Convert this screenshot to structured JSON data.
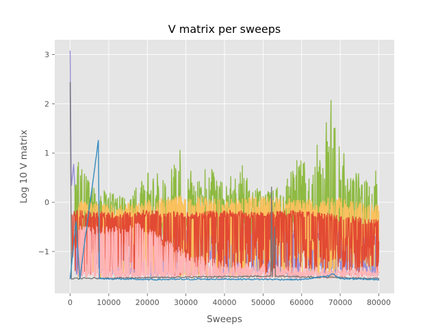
{
  "chart_data": {
    "type": "line",
    "title": "V matrix per sweeps",
    "xlabel": "Sweeps",
    "ylabel": "Log 10 V matrix",
    "xlim": [
      -4000,
      84000
    ],
    "ylim": [
      -1.85,
      3.3
    ],
    "xticks": [
      0,
      10000,
      20000,
      30000,
      40000,
      50000,
      60000,
      70000,
      80000
    ],
    "yticks": [
      -1,
      0,
      1,
      2,
      3
    ],
    "grid": true,
    "style": "ggplot",
    "background": "#E5E5E5",
    "series": [
      {
        "color": "#988ED5",
        "points": [
          [
            0,
            3.08
          ],
          [
            300,
            0.3
          ],
          [
            900,
            0.78
          ],
          [
            1500,
            -0.2
          ],
          [
            3000,
            -0.5
          ],
          [
            6000,
            -0.4
          ],
          [
            10000,
            -0.45
          ],
          [
            20000,
            -0.35
          ],
          [
            30000,
            -0.4
          ],
          [
            40000,
            -0.35
          ],
          [
            50000,
            -0.4
          ],
          [
            60000,
            -0.45
          ],
          [
            70000,
            -0.4
          ],
          [
            80000,
            -0.55
          ]
        ],
        "floor": [
          -1.3,
          -0.5
        ]
      },
      {
        "color": "#8EBA42",
        "points": [
          [
            1000,
            0.2
          ],
          [
            2200,
            0.87
          ],
          [
            5000,
            0.4
          ],
          [
            10000,
            0.2
          ],
          [
            15000,
            0.1
          ],
          [
            21000,
            0.7
          ],
          [
            25000,
            0.45
          ],
          [
            29500,
            1.26
          ],
          [
            32000,
            0.4
          ],
          [
            36000,
            0.8
          ],
          [
            40000,
            0.4
          ],
          [
            44500,
            0.8
          ],
          [
            48000,
            0.3
          ],
          [
            55000,
            0.3
          ],
          [
            59000,
            0.95
          ],
          [
            61000,
            0.8
          ],
          [
            63000,
            0.6
          ],
          [
            64000,
            1.2
          ],
          [
            66000,
            1.45
          ],
          [
            67500,
            2.19
          ],
          [
            68500,
            1.8
          ],
          [
            70000,
            1.3
          ],
          [
            72000,
            0.7
          ],
          [
            76000,
            0.55
          ],
          [
            79000,
            0.95
          ],
          [
            80000,
            0.4
          ]
        ],
        "base": -0.3
      },
      {
        "color": "#FBC15E",
        "points": [
          [
            2000,
            -0.2
          ],
          [
            10000,
            -0.3
          ],
          [
            20000,
            -0.2
          ],
          [
            30000,
            -0.1
          ],
          [
            40000,
            -0.2
          ],
          [
            50000,
            -0.1
          ],
          [
            60000,
            -0.2
          ],
          [
            70000,
            -0.15
          ],
          [
            80000,
            -0.3
          ]
        ]
      },
      {
        "color": "#E24A33",
        "points": [
          [
            500,
            -0.3
          ],
          [
            10000,
            -0.35
          ],
          [
            20000,
            -0.3
          ],
          [
            30000,
            -0.35
          ],
          [
            40000,
            -0.3
          ],
          [
            50000,
            -0.35
          ],
          [
            60000,
            -0.3
          ],
          [
            70000,
            -0.4
          ],
          [
            80000,
            -0.5
          ]
        ]
      },
      {
        "color": "#FFB5B8",
        "points": [
          [
            2000,
            -0.6
          ],
          [
            5000,
            -0.7
          ],
          [
            10000,
            -0.7
          ],
          [
            18000,
            -0.6
          ],
          [
            22000,
            -0.8
          ],
          [
            30000,
            -1.2
          ],
          [
            40000,
            -1.4
          ],
          [
            50000,
            -1.45
          ],
          [
            60000,
            -1.5
          ],
          [
            70000,
            -1.5
          ],
          [
            80000,
            -1.5
          ]
        ]
      },
      {
        "color": "#777777",
        "points": [
          [
            0,
            2.42
          ],
          [
            300,
            -1.55
          ],
          [
            52000,
            -1.5
          ],
          [
            52200,
            0.3
          ],
          [
            52400,
            -1.5
          ],
          [
            53000,
            -0.5
          ],
          [
            53200,
            -1.5
          ],
          [
            80000,
            -1.55
          ]
        ]
      },
      {
        "color": "#348ABD",
        "points": [
          [
            0,
            -1.55
          ],
          [
            1500,
            -0.4
          ],
          [
            2500,
            -1.55
          ],
          [
            7300,
            1.25
          ],
          [
            7600,
            -1.55
          ],
          [
            20000,
            -1.57
          ],
          [
            40000,
            -1.56
          ],
          [
            60000,
            -1.57
          ],
          [
            67000,
            -1.5
          ],
          [
            68000,
            -1.45
          ],
          [
            70000,
            -1.55
          ],
          [
            80000,
            -1.57
          ]
        ]
      }
    ]
  }
}
